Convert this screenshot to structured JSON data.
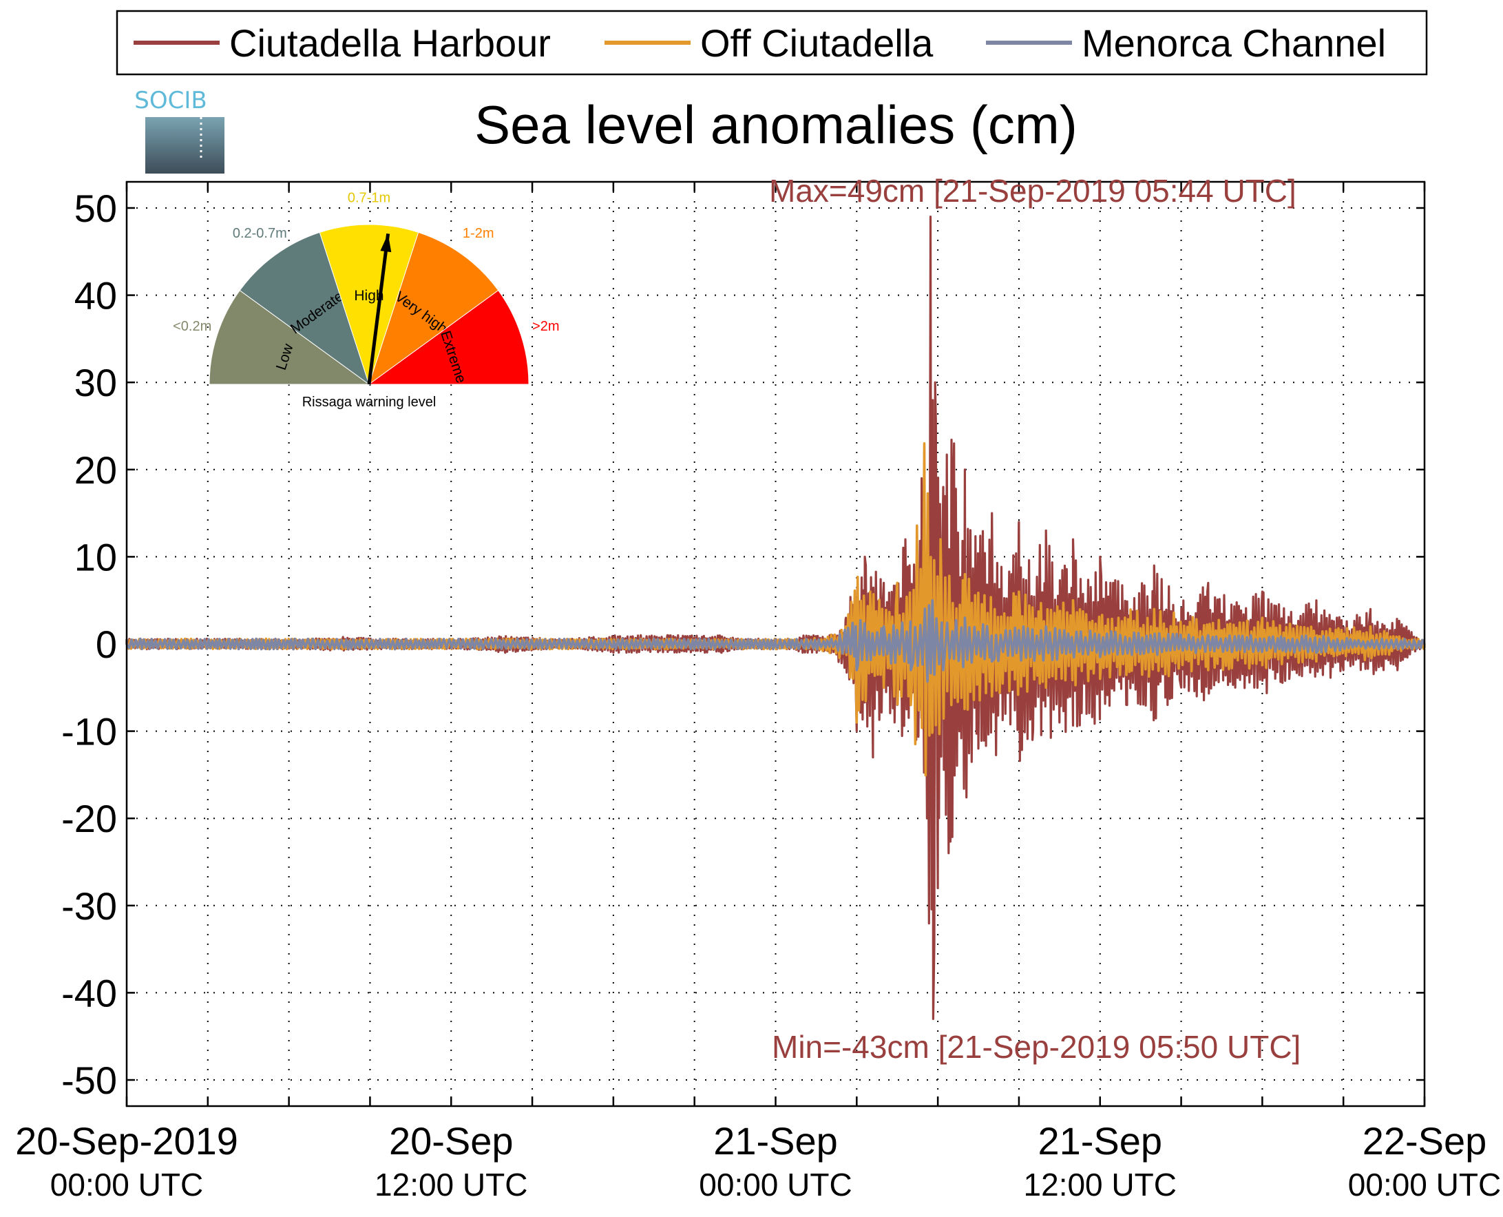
{
  "chart_data": {
    "type": "line",
    "title": "Sea level anomalies (cm)",
    "xlabel": "",
    "ylabel": "",
    "ylim": [
      -53,
      53
    ],
    "yticks": [
      "50",
      "40",
      "30",
      "20",
      "10",
      "0",
      "-10",
      "-20",
      "-30",
      "-40",
      "-50"
    ],
    "ytick_values": [
      50,
      40,
      30,
      20,
      10,
      0,
      -10,
      -20,
      -30,
      -40,
      -50
    ],
    "x_unit": "hours since 20-Sep-2019 00:00 UTC",
    "xlim_hours": [
      0,
      48
    ],
    "xticks": [
      {
        "hour": 0,
        "line1": "20-Sep-2019",
        "line2": "00:00 UTC"
      },
      {
        "hour": 12,
        "line1": "20-Sep",
        "line2": "12:00 UTC"
      },
      {
        "hour": 24,
        "line1": "21-Sep",
        "line2": "00:00 UTC"
      },
      {
        "hour": 36,
        "line1": "21-Sep",
        "line2": "12:00 UTC"
      },
      {
        "hour": 48,
        "line1": "22-Sep",
        "line2": "00:00 UTC"
      }
    ],
    "minor_xtick_hours": [
      3,
      6,
      9,
      15,
      18,
      21,
      27,
      30,
      33,
      39,
      42,
      45
    ],
    "grid": true,
    "legend_position": "top",
    "series": [
      {
        "name": "Ciutadella Harbour",
        "color": "#99403f",
        "x": [
          0,
          2,
          4,
          6,
          8,
          10,
          12,
          14,
          16,
          18,
          20,
          22,
          24,
          25,
          26,
          26.6,
          27.0,
          27.3,
          27.6,
          28.0,
          28.4,
          28.8,
          29.2,
          29.4,
          29.6,
          29.73,
          29.83,
          29.9,
          30.0,
          30.2,
          30.4,
          30.6,
          30.8,
          31.0,
          31.5,
          32.0,
          32.5,
          33.0,
          33.5,
          34.0,
          34.5,
          35.0,
          35.5,
          36.0,
          37.0,
          38.0,
          39.0,
          40.0,
          41.0,
          42.0,
          43.0,
          44.0,
          45.0,
          46.0,
          47.0,
          48.0
        ],
        "values": [
          0,
          -0.5,
          0.5,
          -0.5,
          0.8,
          -0.5,
          0.5,
          -1,
          0.5,
          -1,
          1,
          -1,
          0,
          -1,
          1,
          3,
          -10,
          10,
          -13,
          7,
          -9,
          12,
          -11,
          19,
          -20,
          49,
          -43,
          30,
          -28,
          18,
          -24,
          23,
          -10,
          20,
          -12,
          15,
          -8,
          14,
          -11,
          13,
          -9,
          12,
          -8,
          10,
          -7,
          9,
          -5,
          7,
          -5,
          6,
          -4,
          5,
          -3,
          4,
          -3,
          0
        ]
      },
      {
        "name": "Off Ciutadella",
        "color": "#e3982c",
        "x": [
          0,
          4,
          8,
          12,
          16,
          20,
          24,
          26,
          26.6,
          27.0,
          27.5,
          28.0,
          28.5,
          29.0,
          29.5,
          29.8,
          30.1,
          30.5,
          31.0,
          32.0,
          33.0,
          34.0,
          35.0,
          36.0,
          38.0,
          40.0,
          42.0,
          44.0,
          46.0,
          48.0
        ],
        "values": [
          0,
          -0.5,
          0.3,
          0.5,
          -0.5,
          0,
          0,
          -1,
          2,
          -9,
          6,
          -5,
          7,
          -7,
          23,
          -10,
          12,
          -7,
          8,
          -6,
          6,
          -5,
          5,
          -4,
          4,
          -3,
          3,
          -2,
          2,
          0
        ]
      },
      {
        "name": "Menorca Channel",
        "color": "#7e86a6",
        "x": [
          0,
          6,
          12,
          18,
          24,
          26,
          27.0,
          28.0,
          29.0,
          29.8,
          30.2,
          31.0,
          32.0,
          34.0,
          36.0,
          40.0,
          44.0,
          48.0
        ],
        "values": [
          0,
          0.3,
          0,
          -0.3,
          0,
          0,
          -3,
          2,
          -3,
          5,
          -3,
          3,
          -2,
          2,
          -1.5,
          1,
          -1,
          0
        ]
      }
    ],
    "annotations": [
      {
        "text": "Max=49cm [21-Sep-2019 05:44 UTC]",
        "color": "#99403f"
      },
      {
        "text": "Min=-43cm [21-Sep-2019 05:50 UTC]",
        "color": "#99403f"
      }
    ]
  },
  "logo": {
    "text": "SOCIB"
  },
  "gauge": {
    "caption": "Rissaga warning level",
    "segments": [
      {
        "label": "Low",
        "range": "<0.2m",
        "color": "#82896a",
        "range_color": "#82896a"
      },
      {
        "label": "Moderate",
        "range": "0.2-0.7m",
        "color": "#5f7b7a",
        "range_color": "#5f7b7a"
      },
      {
        "label": "High",
        "range": "0.7-1m",
        "color": "#ffe000",
        "range_color": "#e6c800"
      },
      {
        "label": "Very high",
        "range": "1-2m",
        "color": "#ff8000",
        "range_color": "#ff8000"
      },
      {
        "label": "Extreme",
        "range": ">2m",
        "color": "#ff0000",
        "range_color": "#ff0000"
      }
    ],
    "needle_level": "High"
  }
}
